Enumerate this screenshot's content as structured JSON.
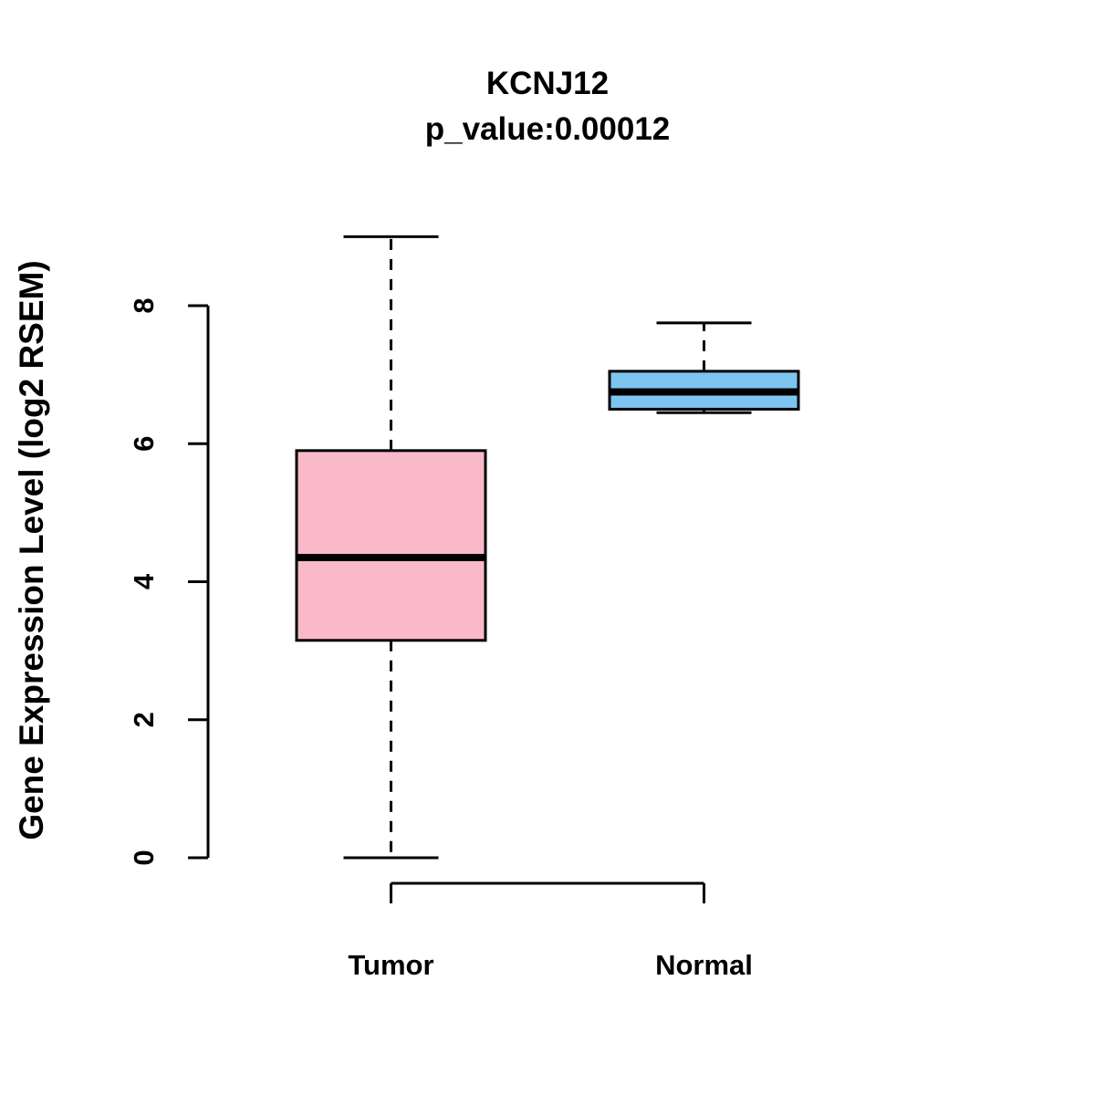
{
  "title": "KCNJ12",
  "subtitle": "p_value:0.00012",
  "ylabel": "Gene Expression Level (log2 RSEM)",
  "chart_data": {
    "type": "boxplot",
    "title": "KCNJ12",
    "subtitle": "p_value:0.00012",
    "ylabel": "Gene Expression Level (log2 RSEM)",
    "categories": [
      "Tumor",
      "Normal"
    ],
    "yticks": [
      0,
      2,
      4,
      6,
      8
    ],
    "ylim": [
      0,
      9.1
    ],
    "grid": false,
    "legend": "none",
    "series": [
      {
        "name": "Tumor",
        "color": "#F9B9C8",
        "whisker_low": 0.0,
        "q1": 3.15,
        "median": 4.35,
        "q3": 5.9,
        "whisker_high": 9.0
      },
      {
        "name": "Normal",
        "color": "#7EC4F0",
        "whisker_low": 6.45,
        "q1": 6.5,
        "median": 6.75,
        "q3": 7.05,
        "whisker_high": 7.75
      }
    ],
    "styles": {
      "box_border": "#000000",
      "median_color": "#000000",
      "whisker_style": "dashed",
      "background": "#ffffff"
    }
  }
}
